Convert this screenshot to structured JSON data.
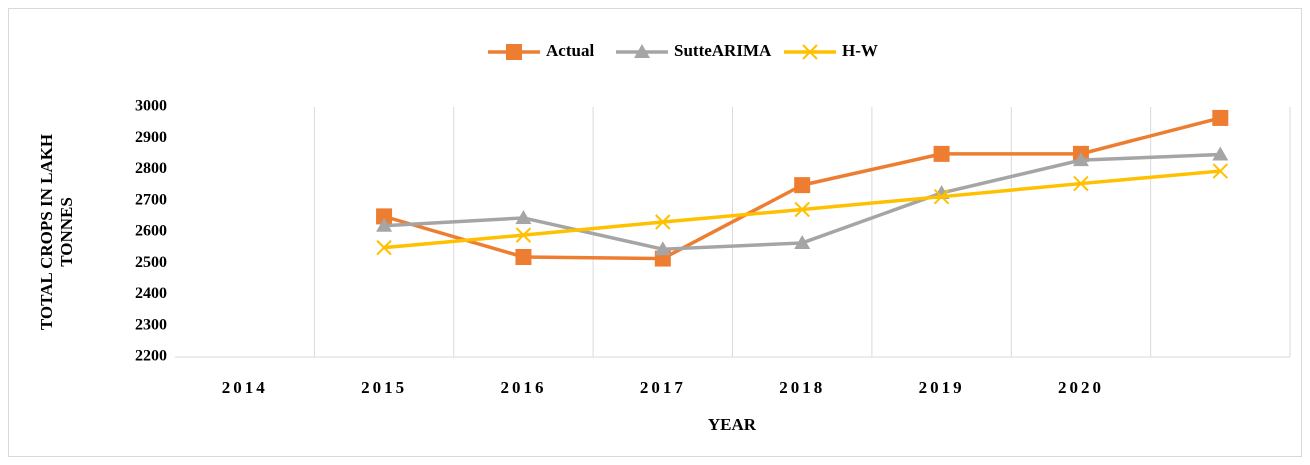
{
  "chart_data": {
    "type": "line",
    "x_label": "YEAR",
    "y_label": [
      "TOTAL CROPS IN LAKH",
      "TONNES"
    ],
    "categories": [
      "2014",
      "2015",
      "2016",
      "2017",
      "2018",
      "2019",
      "2020",
      null
    ],
    "series": [
      {
        "name": "Actual",
        "color": "#ed7d31",
        "marker": "square",
        "values": [
          null,
          2650,
          2520,
          2515,
          2750,
          2850,
          2850,
          2965
        ]
      },
      {
        "name": "SutteARIMA",
        "color": "#a5a5a5",
        "marker": "triangle",
        "values": [
          null,
          2620,
          2645,
          2545,
          2565,
          2725,
          2830,
          2848
        ]
      },
      {
        "name": "H-W",
        "color": "#ffc000",
        "marker": "x",
        "values": [
          null,
          2550,
          2590,
          2632,
          2672,
          2713,
          2755,
          2795
        ]
      }
    ],
    "ylim": [
      2200,
      3000
    ],
    "yticks": [
      2200,
      2300,
      2400,
      2500,
      2600,
      2700,
      2800,
      2900,
      3000
    ],
    "legend": "top"
  }
}
